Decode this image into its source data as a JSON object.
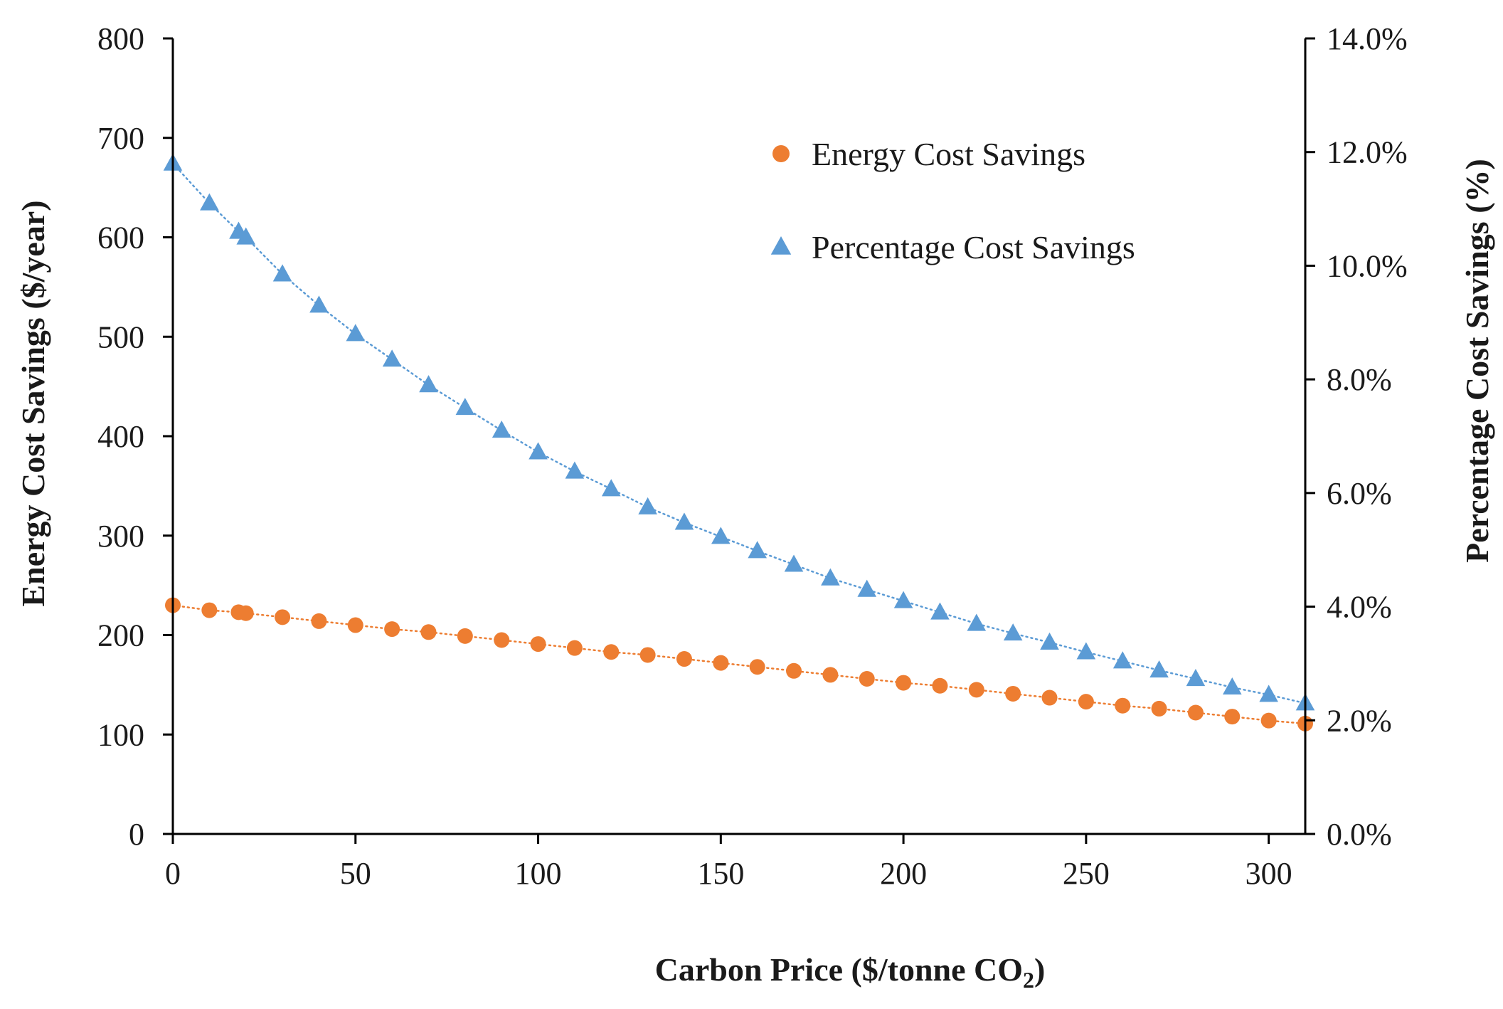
{
  "chart_data": {
    "type": "scatter",
    "xlabel_main": "Carbon Price ($/tonne CO",
    "xlabel_sub": "2",
    "xlabel_end": ")",
    "ylabel_left": "Energy Cost  Savings ($/year)",
    "ylabel_right": "Percentage Cost Savings  (%)",
    "xlim": [
      0,
      310
    ],
    "ylim_left": [
      0,
      800
    ],
    "ylim_right": [
      0,
      14
    ],
    "x_ticks": [
      0,
      50,
      100,
      150,
      200,
      250,
      300
    ],
    "x_tick_labels": [
      "0",
      "50",
      "100",
      "150",
      "200",
      "250",
      "300"
    ],
    "y_left_ticks": [
      0,
      100,
      200,
      300,
      400,
      500,
      600,
      700,
      800
    ],
    "y_left_tick_labels": [
      "0",
      "100",
      "200",
      "300",
      "400",
      "500",
      "600",
      "700",
      "800"
    ],
    "y_right_ticks": [
      0,
      2,
      4,
      6,
      8,
      10,
      12,
      14
    ],
    "y_right_tick_labels": [
      "0.0%",
      "2.0%",
      "4.0%",
      "6.0%",
      "8.0%",
      "10.0%",
      "12.0%",
      "14.0%"
    ],
    "legend_position": "top-right",
    "series": [
      {
        "name": "Energy Cost Savings",
        "axis": "left",
        "marker": "circle",
        "color": "#ED7D31",
        "x": [
          0,
          10,
          18,
          20,
          30,
          40,
          50,
          60,
          70,
          80,
          90,
          100,
          110,
          120,
          130,
          140,
          150,
          160,
          170,
          180,
          190,
          200,
          210,
          220,
          230,
          240,
          250,
          260,
          270,
          280,
          290,
          300,
          310
        ],
        "y": [
          230,
          225,
          223,
          222,
          218,
          214,
          210,
          206,
          203,
          199,
          195,
          191,
          187,
          183,
          180,
          176,
          172,
          168,
          164,
          160,
          156,
          152,
          149,
          145,
          141,
          137,
          133,
          129,
          126,
          122,
          118,
          114,
          111
        ]
      },
      {
        "name": "Percentage Cost Savings",
        "axis": "right",
        "marker": "triangle",
        "color": "#5B9BD5",
        "x": [
          0,
          10,
          18,
          20,
          30,
          40,
          50,
          60,
          70,
          80,
          90,
          100,
          110,
          120,
          130,
          140,
          150,
          160,
          170,
          180,
          190,
          200,
          210,
          220,
          230,
          240,
          250,
          260,
          270,
          280,
          290,
          300,
          310
        ],
        "y": [
          11.8,
          11.1,
          10.6,
          10.5,
          9.85,
          9.3,
          8.8,
          8.35,
          7.9,
          7.5,
          7.1,
          6.72,
          6.38,
          6.07,
          5.75,
          5.48,
          5.23,
          4.98,
          4.74,
          4.5,
          4.3,
          4.1,
          3.9,
          3.7,
          3.53,
          3.37,
          3.2,
          3.04,
          2.88,
          2.73,
          2.58,
          2.45,
          2.3
        ]
      }
    ]
  }
}
